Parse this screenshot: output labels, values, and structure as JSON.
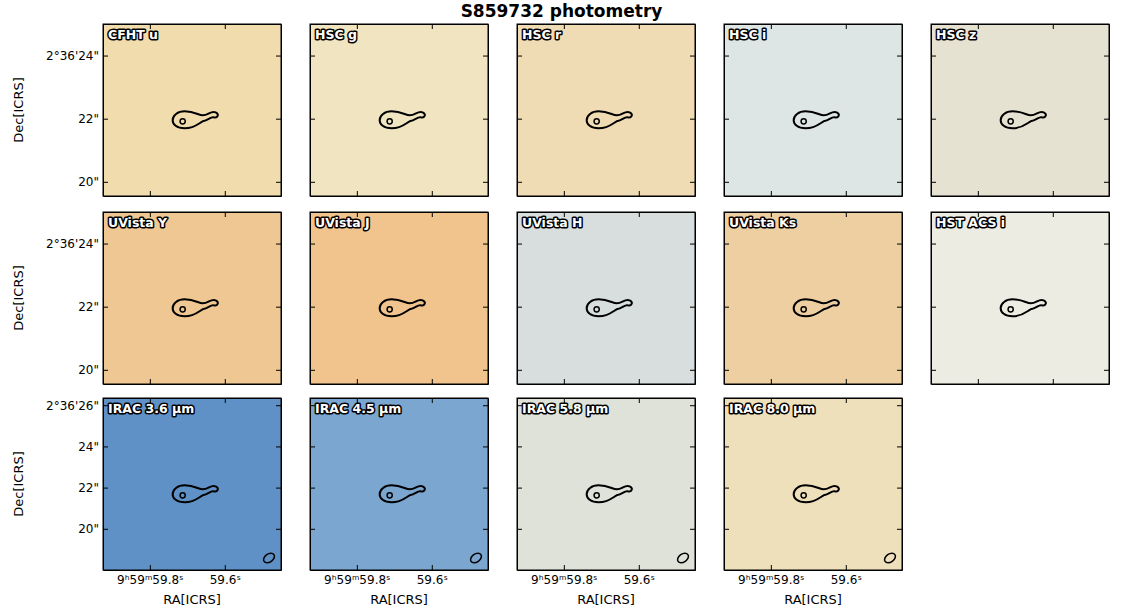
{
  "title": "S859732 photometry",
  "chart_data": [
    {
      "type": "image",
      "title": "CFHT u",
      "color": "#f1dcae",
      "xlim": [
        59.925,
        59.45
      ],
      "ylim": [
        19.55,
        25.0
      ],
      "xticks": [
        {
          "value": 59.8,
          "label": "9ʰ59ᵐ59.8ˢ"
        },
        {
          "value": 59.6,
          "label": "59.6ˢ"
        }
      ],
      "yticks": [
        {
          "value": 24,
          "label": "2°36'24\""
        },
        {
          "value": 22,
          "label": "22\""
        },
        {
          "value": 20,
          "label": "20\""
        }
      ],
      "ylabel": "Dec[ICRS]",
      "tick_labels": "y"
    },
    {
      "type": "image",
      "title": "HSC g",
      "color": "#f1e4c0",
      "xlim": [
        59.925,
        59.45
      ],
      "ylim": [
        19.55,
        25.0
      ],
      "xticks": [
        {
          "value": 59.8,
          "label": "9ʰ59ᵐ59.8ˢ"
        },
        {
          "value": 59.6,
          "label": "59.6ˢ"
        }
      ],
      "yticks": [
        {
          "value": 24,
          "label": "2°36'24\""
        },
        {
          "value": 22,
          "label": "22\""
        },
        {
          "value": 20,
          "label": "20\""
        }
      ],
      "tick_labels": false
    },
    {
      "type": "image",
      "title": "HSC r",
      "color": "#f0dcb4",
      "xlim": [
        59.925,
        59.45
      ],
      "ylim": [
        19.55,
        25.0
      ],
      "xticks": [
        {
          "value": 59.8,
          "label": "9ʰ59ᵐ59.8ˢ"
        },
        {
          "value": 59.6,
          "label": "59.6ˢ"
        }
      ],
      "yticks": [
        {
          "value": 24,
          "label": "2°36'24\""
        },
        {
          "value": 22,
          "label": "22\""
        },
        {
          "value": 20,
          "label": "20\""
        }
      ],
      "tick_labels": false
    },
    {
      "type": "image",
      "title": "HSC i",
      "color": "#dde6e4",
      "xlim": [
        59.925,
        59.45
      ],
      "ylim": [
        19.55,
        25.0
      ],
      "xticks": [
        {
          "value": 59.8,
          "label": "9ʰ59ᵐ59.8ˢ"
        },
        {
          "value": 59.6,
          "label": "59.6ˢ"
        }
      ],
      "yticks": [
        {
          "value": 24,
          "label": "2°36'24\""
        },
        {
          "value": 22,
          "label": "22\""
        },
        {
          "value": 20,
          "label": "20\""
        }
      ],
      "tick_labels": false
    },
    {
      "type": "image",
      "title": "HSC z",
      "color": "#e6e2d2",
      "xlim": [
        59.925,
        59.45
      ],
      "ylim": [
        19.55,
        25.0
      ],
      "xticks": [
        {
          "value": 59.8,
          "label": "9ʰ59ᵐ59.8ˢ"
        },
        {
          "value": 59.6,
          "label": "59.6ˢ"
        }
      ],
      "yticks": [
        {
          "value": 24,
          "label": "2°36'24\""
        },
        {
          "value": 22,
          "label": "22\""
        },
        {
          "value": 20,
          "label": "20\""
        }
      ],
      "tick_labels": false
    },
    {
      "type": "image",
      "title": "UVista Y",
      "color": "#efc792",
      "xlim": [
        59.925,
        59.45
      ],
      "ylim": [
        19.55,
        25.0
      ],
      "xticks": [
        {
          "value": 59.8,
          "label": "9ʰ59ᵐ59.8ˢ"
        },
        {
          "value": 59.6,
          "label": "59.6ˢ"
        }
      ],
      "yticks": [
        {
          "value": 24,
          "label": "2°36'24\""
        },
        {
          "value": 22,
          "label": "22\""
        },
        {
          "value": 20,
          "label": "20\""
        }
      ],
      "ylabel": "Dec[ICRS]",
      "tick_labels": "y"
    },
    {
      "type": "image",
      "title": "UVista J",
      "color": "#f1c48e",
      "xlim": [
        59.925,
        59.45
      ],
      "ylim": [
        19.55,
        25.0
      ],
      "xticks": [
        {
          "value": 59.8,
          "label": "9ʰ59ᵐ59.8ˢ"
        },
        {
          "value": 59.6,
          "label": "59.6ˢ"
        }
      ],
      "yticks": [
        {
          "value": 24,
          "label": "2°36'24\""
        },
        {
          "value": 22,
          "label": "22\""
        },
        {
          "value": 20,
          "label": "20\""
        }
      ],
      "tick_labels": false
    },
    {
      "type": "image",
      "title": "UVista H",
      "color": "#d8dedd",
      "xlim": [
        59.925,
        59.45
      ],
      "ylim": [
        19.55,
        25.0
      ],
      "xticks": [
        {
          "value": 59.8,
          "label": "9ʰ59ᵐ59.8ˢ"
        },
        {
          "value": 59.6,
          "label": "59.6ˢ"
        }
      ],
      "yticks": [
        {
          "value": 24,
          "label": "2°36'24\""
        },
        {
          "value": 22,
          "label": "22\""
        },
        {
          "value": 20,
          "label": "20\""
        }
      ],
      "tick_labels": false
    },
    {
      "type": "image",
      "title": "UVista Ks",
      "color": "#edcfa2",
      "xlim": [
        59.925,
        59.45
      ],
      "ylim": [
        19.55,
        25.0
      ],
      "xticks": [
        {
          "value": 59.8,
          "label": "9ʰ59ᵐ59.8ˢ"
        },
        {
          "value": 59.6,
          "label": "59.6ˢ"
        }
      ],
      "yticks": [
        {
          "value": 24,
          "label": "2°36'24\""
        },
        {
          "value": 22,
          "label": "22\""
        },
        {
          "value": 20,
          "label": "20\""
        }
      ],
      "tick_labels": false
    },
    {
      "type": "image",
      "title": "HST ACS i",
      "color": "#ecece2",
      "xlim": [
        59.925,
        59.45
      ],
      "ylim": [
        19.55,
        25.0
      ],
      "xticks": [
        {
          "value": 59.8,
          "label": "9ʰ59ᵐ59.8ˢ"
        },
        {
          "value": 59.6,
          "label": "59.6ˢ"
        }
      ],
      "yticks": [
        {
          "value": 24,
          "label": "2°36'24\""
        },
        {
          "value": 22,
          "label": "22\""
        },
        {
          "value": 20,
          "label": "20\""
        }
      ],
      "tick_labels": false
    },
    {
      "type": "image",
      "title": "IRAC 3.6 µm",
      "color": "#5f90c6",
      "xlim": [
        59.925,
        59.45
      ],
      "ylim": [
        18.0,
        26.35
      ],
      "xticks": [
        {
          "value": 59.8,
          "label": "9ʰ59ᵐ59.8ˢ"
        },
        {
          "value": 59.6,
          "label": "59.6ˢ"
        }
      ],
      "yticks": [
        {
          "value": 26,
          "label": "2°36'26\""
        },
        {
          "value": 24,
          "label": "24\""
        },
        {
          "value": 22,
          "label": "22\""
        },
        {
          "value": 20,
          "label": "20\""
        }
      ],
      "xlabel": "RA[ICRS]",
      "ylabel": "Dec[ICRS]",
      "tick_labels": true
    },
    {
      "type": "image",
      "title": "IRAC 4.5 µm",
      "color": "#7aa6d0",
      "xlim": [
        59.925,
        59.45
      ],
      "ylim": [
        18.0,
        26.35
      ],
      "xticks": [
        {
          "value": 59.8,
          "label": "9ʰ59ᵐ59.8ˢ"
        },
        {
          "value": 59.6,
          "label": "59.6ˢ"
        }
      ],
      "yticks": [
        {
          "value": 26,
          "label": "2°36'26\""
        },
        {
          "value": 24,
          "label": "24\""
        },
        {
          "value": 22,
          "label": "22\""
        },
        {
          "value": 20,
          "label": "20\""
        }
      ],
      "xlabel": "RA[ICRS]",
      "tick_labels": "x"
    },
    {
      "type": "image",
      "title": "IRAC 5.8 µm",
      "color": "#dfe2d8",
      "xlim": [
        59.925,
        59.45
      ],
      "ylim": [
        18.0,
        26.35
      ],
      "xticks": [
        {
          "value": 59.8,
          "label": "9ʰ59ᵐ59.8ˢ"
        },
        {
          "value": 59.6,
          "label": "59.6ˢ"
        }
      ],
      "yticks": [
        {
          "value": 26,
          "label": "2°36'26\""
        },
        {
          "value": 24,
          "label": "24\""
        },
        {
          "value": 22,
          "label": "22\""
        },
        {
          "value": 20,
          "label": "20\""
        }
      ],
      "xlabel": "RA[ICRS]",
      "tick_labels": "x"
    },
    {
      "type": "image",
      "title": "IRAC 8.0 µm",
      "color": "#efe0bc",
      "xlim": [
        59.925,
        59.45
      ],
      "ylim": [
        18.0,
        26.35
      ],
      "xticks": [
        {
          "value": 59.8,
          "label": "9ʰ59ᵐ59.8ˢ"
        },
        {
          "value": 59.6,
          "label": "59.6ˢ"
        }
      ],
      "yticks": [
        {
          "value": 26,
          "label": "2°36'26\""
        },
        {
          "value": 24,
          "label": "24\""
        },
        {
          "value": 22,
          "label": "22\""
        },
        {
          "value": 20,
          "label": "20\""
        }
      ],
      "xlabel": "RA[ICRS]",
      "tick_labels": "x"
    }
  ]
}
